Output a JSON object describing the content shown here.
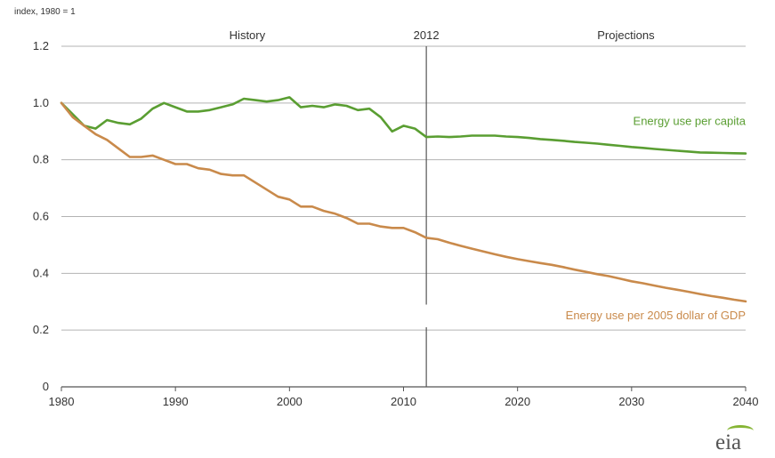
{
  "chart_data": {
    "type": "line",
    "unit_label": "index, 1980 = 1",
    "xlim": [
      1980,
      2040
    ],
    "ylim": [
      0,
      1.2
    ],
    "x_ticks": [
      1980,
      1990,
      2000,
      2010,
      2020,
      2030,
      2040
    ],
    "x_tick_labels": [
      "1980",
      "1990",
      "2000",
      "2010",
      "2020",
      "2030",
      "2040"
    ],
    "y_ticks": [
      0,
      0.2,
      0.4,
      0.6,
      0.8,
      1.0,
      1.2
    ],
    "y_tick_labels": [
      "0",
      "0.2",
      "0.4",
      "0.6",
      "0.8",
      "1.0",
      "1.2"
    ],
    "grid": "horizontal",
    "divider_year": 2012,
    "divider_label": "2012",
    "history_label": "History",
    "projections_label": "Projections",
    "series": [
      {
        "name": "Energy use per capita",
        "color": "#5a9e32",
        "x": [
          1980,
          1981,
          1982,
          1983,
          1984,
          1985,
          1986,
          1987,
          1988,
          1989,
          1990,
          1991,
          1992,
          1993,
          1994,
          1995,
          1996,
          1997,
          1998,
          1999,
          2000,
          2001,
          2002,
          2003,
          2004,
          2005,
          2006,
          2007,
          2008,
          2009,
          2010,
          2011,
          2012,
          2013,
          2014,
          2015,
          2016,
          2017,
          2018,
          2019,
          2020,
          2021,
          2022,
          2023,
          2024,
          2025,
          2026,
          2027,
          2028,
          2029,
          2030,
          2031,
          2032,
          2033,
          2034,
          2035,
          2036,
          2037,
          2038,
          2039,
          2040
        ],
        "y": [
          1.0,
          0.96,
          0.92,
          0.91,
          0.94,
          0.93,
          0.925,
          0.945,
          0.98,
          1.0,
          0.985,
          0.97,
          0.97,
          0.975,
          0.985,
          0.995,
          1.015,
          1.01,
          1.005,
          1.01,
          1.02,
          0.985,
          0.99,
          0.985,
          0.995,
          0.99,
          0.975,
          0.98,
          0.95,
          0.9,
          0.92,
          0.91,
          0.88,
          0.882,
          0.88,
          0.882,
          0.885,
          0.885,
          0.885,
          0.882,
          0.88,
          0.877,
          0.873,
          0.87,
          0.867,
          0.863,
          0.86,
          0.857,
          0.853,
          0.849,
          0.845,
          0.842,
          0.838,
          0.835,
          0.832,
          0.829,
          0.826,
          0.825,
          0.824,
          0.823,
          0.822
        ]
      },
      {
        "name": "Energy use per 2005 dollar of GDP",
        "color": "#c98a4b",
        "x": [
          1980,
          1981,
          1982,
          1983,
          1984,
          1985,
          1986,
          1987,
          1988,
          1989,
          1990,
          1991,
          1992,
          1993,
          1994,
          1995,
          1996,
          1997,
          1998,
          1999,
          2000,
          2001,
          2002,
          2003,
          2004,
          2005,
          2006,
          2007,
          2008,
          2009,
          2010,
          2011,
          2012,
          2013,
          2014,
          2015,
          2016,
          2017,
          2018,
          2019,
          2020,
          2021,
          2022,
          2023,
          2024,
          2025,
          2026,
          2027,
          2028,
          2029,
          2030,
          2031,
          2032,
          2033,
          2034,
          2035,
          2036,
          2037,
          2038,
          2039,
          2040
        ],
        "y": [
          1.0,
          0.95,
          0.92,
          0.89,
          0.87,
          0.84,
          0.81,
          0.81,
          0.815,
          0.8,
          0.785,
          0.785,
          0.77,
          0.765,
          0.75,
          0.745,
          0.745,
          0.72,
          0.695,
          0.67,
          0.66,
          0.635,
          0.635,
          0.62,
          0.61,
          0.595,
          0.575,
          0.575,
          0.565,
          0.56,
          0.56,
          0.545,
          0.525,
          0.52,
          0.508,
          0.497,
          0.487,
          0.477,
          0.467,
          0.458,
          0.45,
          0.443,
          0.436,
          0.43,
          0.422,
          0.413,
          0.405,
          0.397,
          0.39,
          0.381,
          0.372,
          0.365,
          0.357,
          0.349,
          0.342,
          0.335,
          0.327,
          0.32,
          0.314,
          0.307,
          0.301
        ]
      }
    ],
    "annotations": {
      "per_capita_label": "Energy use per capita",
      "per_gdp_label": "Energy use per 2005 dollar of GDP"
    }
  },
  "logo_text": "eia"
}
